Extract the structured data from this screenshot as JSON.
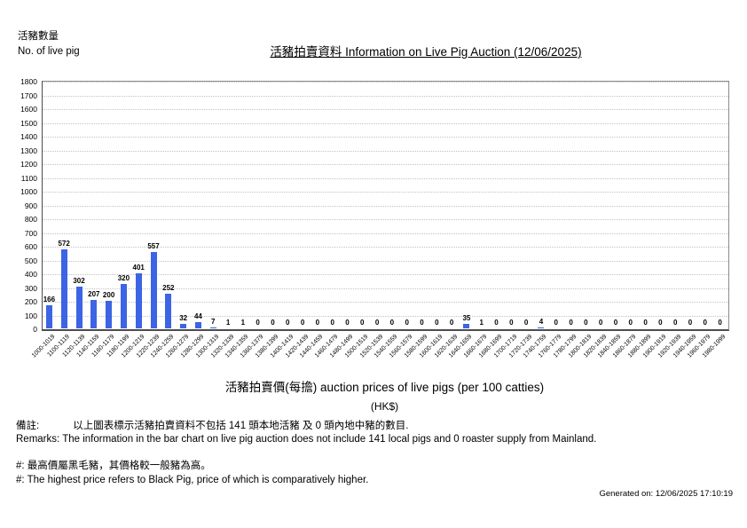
{
  "header": {
    "y_axis_label_zh": "活豬數量",
    "y_axis_label_en": "No. of live pig",
    "title": "活豬拍賣資料 Information on Live Pig Auction (12/06/2025)"
  },
  "chart_data": {
    "type": "bar",
    "title": "活豬拍賣資料 Information on Live Pig Auction (12/06/2025)",
    "ylabel": "活豬數量 No. of live pig",
    "xlabel": "活豬拍賣價(每擔) auction prices of live pigs (per 100 catties)",
    "xlabel_unit": "(HK$)",
    "ylim": [
      0,
      1800
    ],
    "ytick_step": 100,
    "grid": true,
    "bar_color": "#3c64e4",
    "categories": [
      "1000-1019",
      "1100-1119",
      "1120-1139",
      "1140-1159",
      "1160-1179",
      "1180-1199",
      "1200-1219",
      "1220-1239",
      "1240-1259",
      "1260-1279",
      "1280-1299",
      "1300-1319",
      "1320-1339",
      "1340-1359",
      "1360-1379",
      "1380-1399",
      "1400-1419",
      "1420-1439",
      "1440-1459",
      "1460-1479",
      "1480-1499",
      "1500-1519",
      "1520-1539",
      "1540-1559",
      "1560-1579",
      "1580-1599",
      "1600-1619",
      "1620-1639",
      "1640-1659",
      "1660-1679",
      "1680-1699",
      "1700-1719",
      "1720-1739",
      "1740-1759",
      "1760-1779",
      "1780-1799",
      "1800-1819",
      "1820-1839",
      "1840-1859",
      "1860-1879",
      "1880-1899",
      "1900-1919",
      "1920-1939",
      "1940-1959",
      "1960-1979",
      "1980-1999"
    ],
    "values": [
      166,
      572,
      302,
      207,
      200,
      320,
      401,
      557,
      252,
      32,
      44,
      7,
      1,
      1,
      0,
      0,
      0,
      0,
      0,
      0,
      0,
      0,
      0,
      0,
      0,
      0,
      0,
      0,
      35,
      1,
      0,
      0,
      0,
      4,
      0,
      0,
      0,
      0,
      0,
      0,
      0,
      0,
      0,
      0,
      0,
      0
    ]
  },
  "footer": {
    "remark_label_zh": "備註:",
    "remark_text_zh": "以上圖表標示活豬拍賣資料不包括 141 頭本地活豬 及 0 頭內地中豬的數目.",
    "remark_en": "Remarks: The information in the bar chart on live pig auction does not include 141 local pigs and 0 roaster supply from Mainland.",
    "note_zh": "#: 最高價屬黑毛豬，其價格較一般豬為高。",
    "note_en": "#: The highest price refers to Black Pig, price of which is comparatively higher.",
    "generated": "Generated on: 12/06/2025 17:10:19"
  }
}
